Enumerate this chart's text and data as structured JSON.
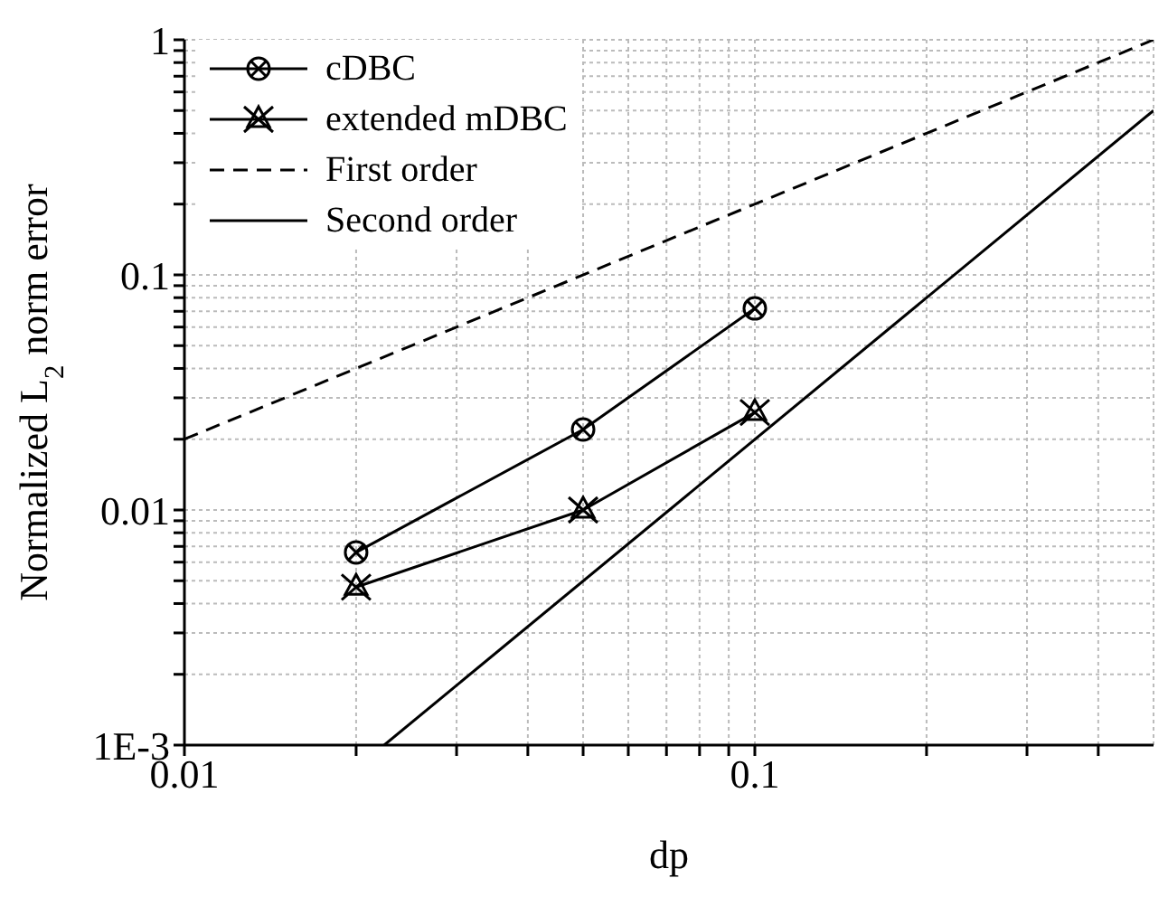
{
  "chart_data": {
    "type": "line",
    "xlabel": "dp",
    "ylabel": "Normalized L$_{2}$ norm error",
    "log": "xy",
    "grid": true,
    "legend": "top left",
    "xlim": [
      0.01,
      0.5
    ],
    "ylim": [
      0.001,
      1
    ],
    "xticks": [
      0.01,
      {
        "value": 0.02,
        "label": null
      },
      {
        "value": 0.03,
        "label": null
      },
      {
        "value": 0.04,
        "label": null
      },
      {
        "value": 0.05,
        "label": null
      },
      {
        "value": 0.06,
        "label": null
      },
      {
        "value": 0.07,
        "label": null
      },
      {
        "value": 0.08,
        "label": null
      },
      {
        "value": 0.09,
        "label": null
      },
      0.1,
      {
        "value": 0.2,
        "label": null
      },
      {
        "value": 0.3,
        "label": null
      },
      {
        "value": 0.4,
        "label": null
      }
    ],
    "yticks": [
      {
        "value": 0.001,
        "label": "1E-3"
      },
      {
        "value": 0.002,
        "label": null
      },
      {
        "value": 0.003,
        "label": null
      },
      {
        "value": 0.004,
        "label": null
      },
      {
        "value": 0.005,
        "label": null
      },
      {
        "value": 0.006,
        "label": null
      },
      {
        "value": 0.007,
        "label": null
      },
      {
        "value": 0.008,
        "label": null
      },
      {
        "value": 0.009,
        "label": null
      },
      0.01,
      {
        "value": 0.02,
        "label": null
      },
      {
        "value": 0.03,
        "label": null
      },
      {
        "value": 0.04,
        "label": null
      },
      {
        "value": 0.05,
        "label": null
      },
      {
        "value": 0.06,
        "label": null
      },
      {
        "value": 0.07,
        "label": null
      },
      {
        "value": 0.08,
        "label": null
      },
      {
        "value": 0.09,
        "label": null
      },
      0.1,
      {
        "value": 0.2,
        "label": null
      },
      {
        "value": 0.3,
        "label": null
      },
      {
        "value": 0.4,
        "label": null
      },
      {
        "value": 0.5,
        "label": null
      },
      {
        "value": 0.6,
        "label": null
      },
      {
        "value": 0.7,
        "label": null
      },
      {
        "value": 0.8,
        "label": null
      },
      {
        "value": 0.9,
        "label": null
      },
      1
    ],
    "series": [
      {
        "name": "cDBC",
        "color": "#000000",
        "marker": "circle",
        "line_style": "solid",
        "x": [
          0.02,
          0.05,
          0.1
        ],
        "values": [
          0.0066,
          0.022,
          0.072
        ]
      },
      {
        "name": "extended mDBC",
        "color": "#000000",
        "marker": "cross",
        "line_style": "solid",
        "x": [
          0.02,
          0.05,
          0.1
        ],
        "values": [
          0.0047,
          0.01,
          0.026
        ]
      },
      {
        "name": "First order",
        "color": "#000000",
        "marker": "none",
        "line_style": "dashed",
        "x": [
          0.01,
          0.5
        ],
        "values": [
          0.02,
          1
        ]
      },
      {
        "name": "Second order",
        "color": "#000000",
        "marker": "none",
        "line_style": "solid",
        "x": [
          0.0224,
          0.5
        ],
        "values": [
          0.001,
          0.5
        ]
      }
    ]
  }
}
